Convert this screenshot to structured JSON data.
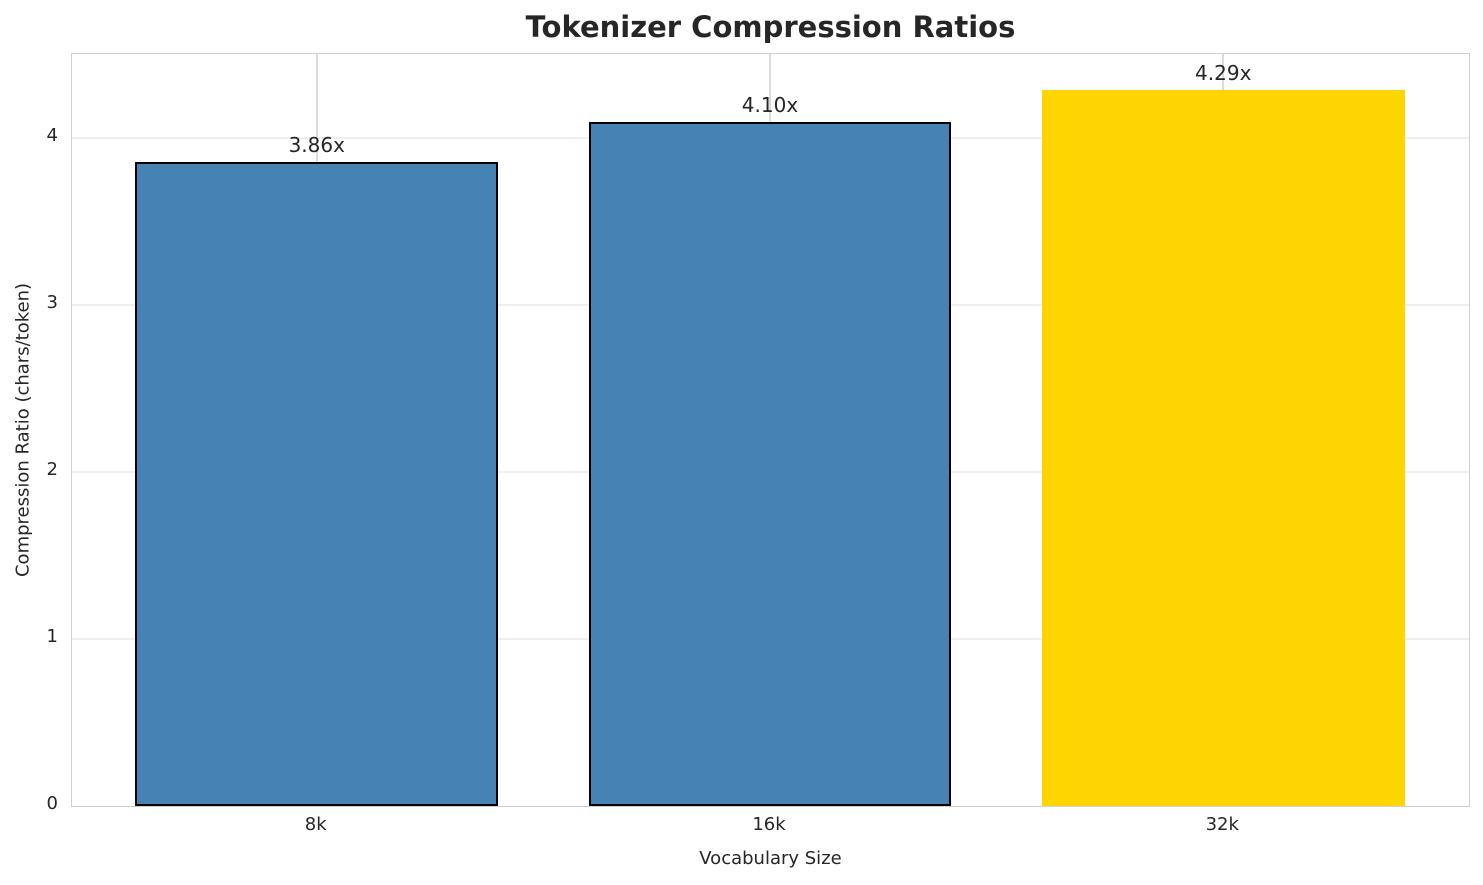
{
  "chart_data": {
    "type": "bar",
    "title": "Tokenizer Compression Ratios",
    "xlabel": "Vocabulary Size",
    "ylabel": "Compression Ratio (chars/token)",
    "categories": [
      "8k",
      "16k",
      "32k"
    ],
    "values": [
      3.86,
      4.1,
      4.29
    ],
    "bar_labels": [
      "3.86x",
      "4.10x",
      "4.29x"
    ],
    "yticks": [
      "0",
      "1",
      "2",
      "3",
      "4"
    ],
    "ytick_values": [
      0,
      1,
      2,
      3,
      4
    ],
    "ylim": [
      0,
      4.5
    ],
    "grid": true,
    "legend_position": "none",
    "bar_colors": [
      "#4682b4",
      "#4682b4",
      "#ffd500"
    ],
    "bar_edge_colors": [
      "#000000",
      "#000000",
      "none"
    ],
    "highlighted_category": "32k",
    "text_color": "#262626",
    "spine_color": "#cfcfcf",
    "hgrid_color": "#efefef",
    "vgrid_color": "#dcdcdc"
  }
}
